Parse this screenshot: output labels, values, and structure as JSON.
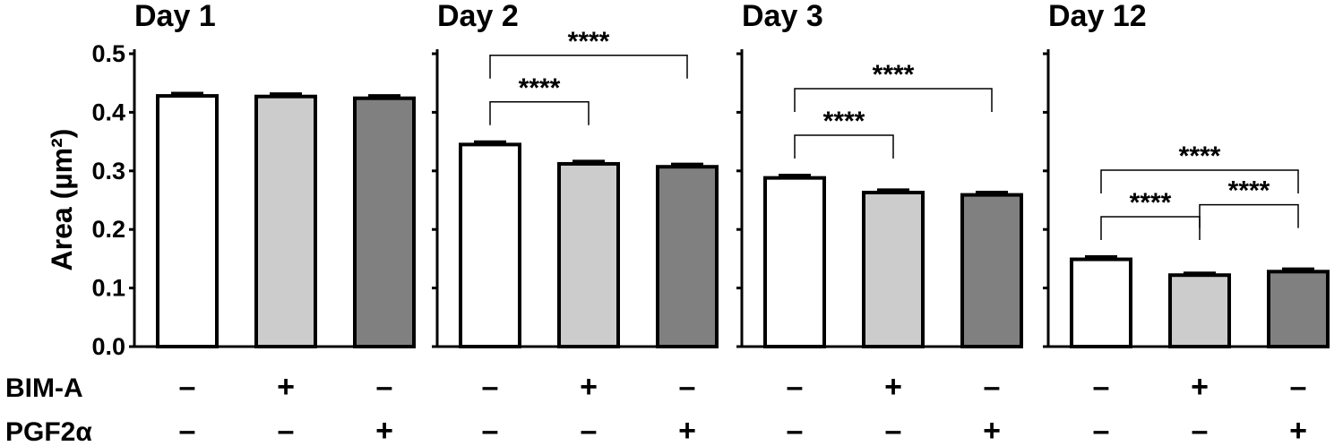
{
  "chart_data": {
    "type": "bar",
    "ylabel": "Area (µm²)",
    "ylim": [
      0,
      0.5
    ],
    "yticks": [
      "0.0",
      "0.1",
      "0.2",
      "0.3",
      "0.4",
      "0.5"
    ],
    "bar_colors": [
      "#ffffff",
      "#cccccc",
      "#808080"
    ],
    "condition_rows": [
      {
        "label": "BIM-A",
        "signs": [
          "–",
          "+",
          "–"
        ]
      },
      {
        "label": "PGF2α",
        "signs": [
          "–",
          "–",
          "+"
        ]
      }
    ],
    "panels": [
      {
        "title": "Day 1",
        "values": [
          0.428,
          0.427,
          0.424
        ],
        "errors": [
          0.004,
          0.004,
          0.004
        ],
        "significance": []
      },
      {
        "title": "Day 2",
        "values": [
          0.345,
          0.312,
          0.307
        ],
        "errors": [
          0.004,
          0.004,
          0.004
        ],
        "significance": [
          {
            "from": 0,
            "to": 1,
            "label": "****"
          },
          {
            "from": 0,
            "to": 2,
            "label": "****"
          }
        ]
      },
      {
        "title": "Day 3",
        "values": [
          0.288,
          0.263,
          0.259
        ],
        "errors": [
          0.004,
          0.004,
          0.004
        ],
        "significance": [
          {
            "from": 0,
            "to": 1,
            "label": "****"
          },
          {
            "from": 0,
            "to": 2,
            "label": "****"
          }
        ]
      },
      {
        "title": "Day 12",
        "values": [
          0.149,
          0.122,
          0.128
        ],
        "errors": [
          0.004,
          0.003,
          0.004
        ],
        "significance": [
          {
            "from": 0,
            "to": 1,
            "label": "****"
          },
          {
            "from": 0,
            "to": 2,
            "label": "****"
          },
          {
            "from": 1,
            "to": 2,
            "label": "****"
          }
        ]
      }
    ]
  }
}
